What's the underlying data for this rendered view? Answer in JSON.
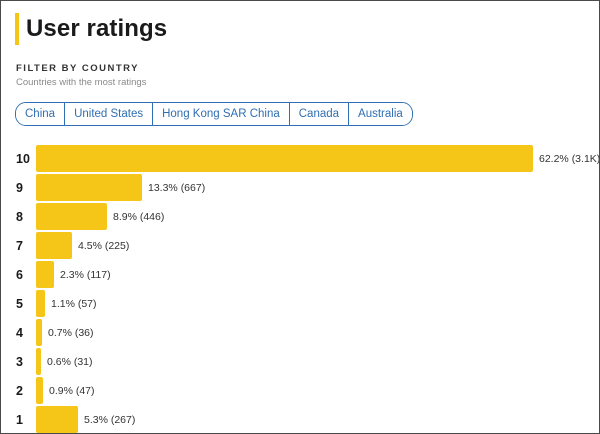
{
  "header": {
    "title": "User ratings"
  },
  "filter": {
    "label": "FILTER BY COUNTRY",
    "subtitle": "Countries with the most ratings",
    "countries": [
      "China",
      "United States",
      "Hong Kong SAR China",
      "Canada",
      "Australia"
    ]
  },
  "accent_color": "#f5c518",
  "link_color": "#2f6fb3",
  "chart_data": {
    "type": "bar",
    "orientation": "horizontal",
    "categories": [
      "10",
      "9",
      "8",
      "7",
      "6",
      "5",
      "4",
      "3",
      "2",
      "1"
    ],
    "values": [
      62.2,
      13.3,
      8.9,
      4.5,
      2.3,
      1.1,
      0.7,
      0.6,
      0.9,
      5.3
    ],
    "labels": [
      "62.2% (3.1K)",
      "13.3% (667)",
      "8.9% (446)",
      "4.5% (225)",
      "2.3% (117)",
      "1.1% (57)",
      "0.7% (36)",
      "0.6% (31)",
      "0.9% (47)",
      "5.3% (267)"
    ],
    "xlim": [
      0,
      62.2
    ],
    "grid": false
  }
}
